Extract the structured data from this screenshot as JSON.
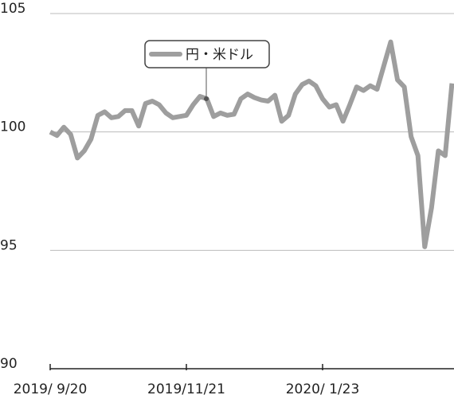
{
  "chart_data": {
    "type": "line",
    "categories": [
      "2019/ 9/20",
      null,
      null,
      null,
      null,
      null,
      null,
      null,
      null,
      null,
      null,
      null,
      null,
      null,
      null,
      null,
      null,
      null,
      null,
      null,
      "2019/11/21",
      null,
      null,
      null,
      null,
      null,
      null,
      null,
      null,
      null,
      null,
      null,
      null,
      null,
      null,
      null,
      null,
      null,
      null,
      null,
      "2020/ 1/23",
      null,
      null,
      null,
      null,
      null,
      null,
      null,
      null,
      null,
      null,
      null,
      null,
      null,
      null,
      null,
      null,
      null,
      null,
      null
    ],
    "series": [
      {
        "name": "円・米ドル",
        "color": "#9e9e9e",
        "values": [
          100.0,
          99.85,
          100.2,
          99.9,
          98.9,
          99.2,
          99.7,
          100.7,
          100.85,
          100.6,
          100.65,
          100.9,
          100.9,
          100.25,
          101.2,
          101.3,
          101.15,
          100.8,
          100.6,
          100.65,
          100.7,
          101.15,
          101.5,
          101.4,
          100.65,
          100.8,
          100.7,
          100.75,
          101.4,
          101.6,
          101.45,
          101.35,
          101.3,
          101.55,
          100.45,
          100.7,
          101.6,
          102.0,
          102.15,
          101.95,
          101.4,
          101.05,
          101.15,
          100.45,
          101.15,
          101.9,
          101.75,
          101.95,
          101.8,
          102.8,
          103.8,
          102.2,
          101.9,
          99.8,
          99.0,
          95.15,
          96.8,
          99.2,
          99.0,
          102.05
        ]
      }
    ],
    "ylim": [
      90,
      105
    ],
    "yticks": [
      90,
      95,
      100,
      105
    ],
    "grid": true
  }
}
